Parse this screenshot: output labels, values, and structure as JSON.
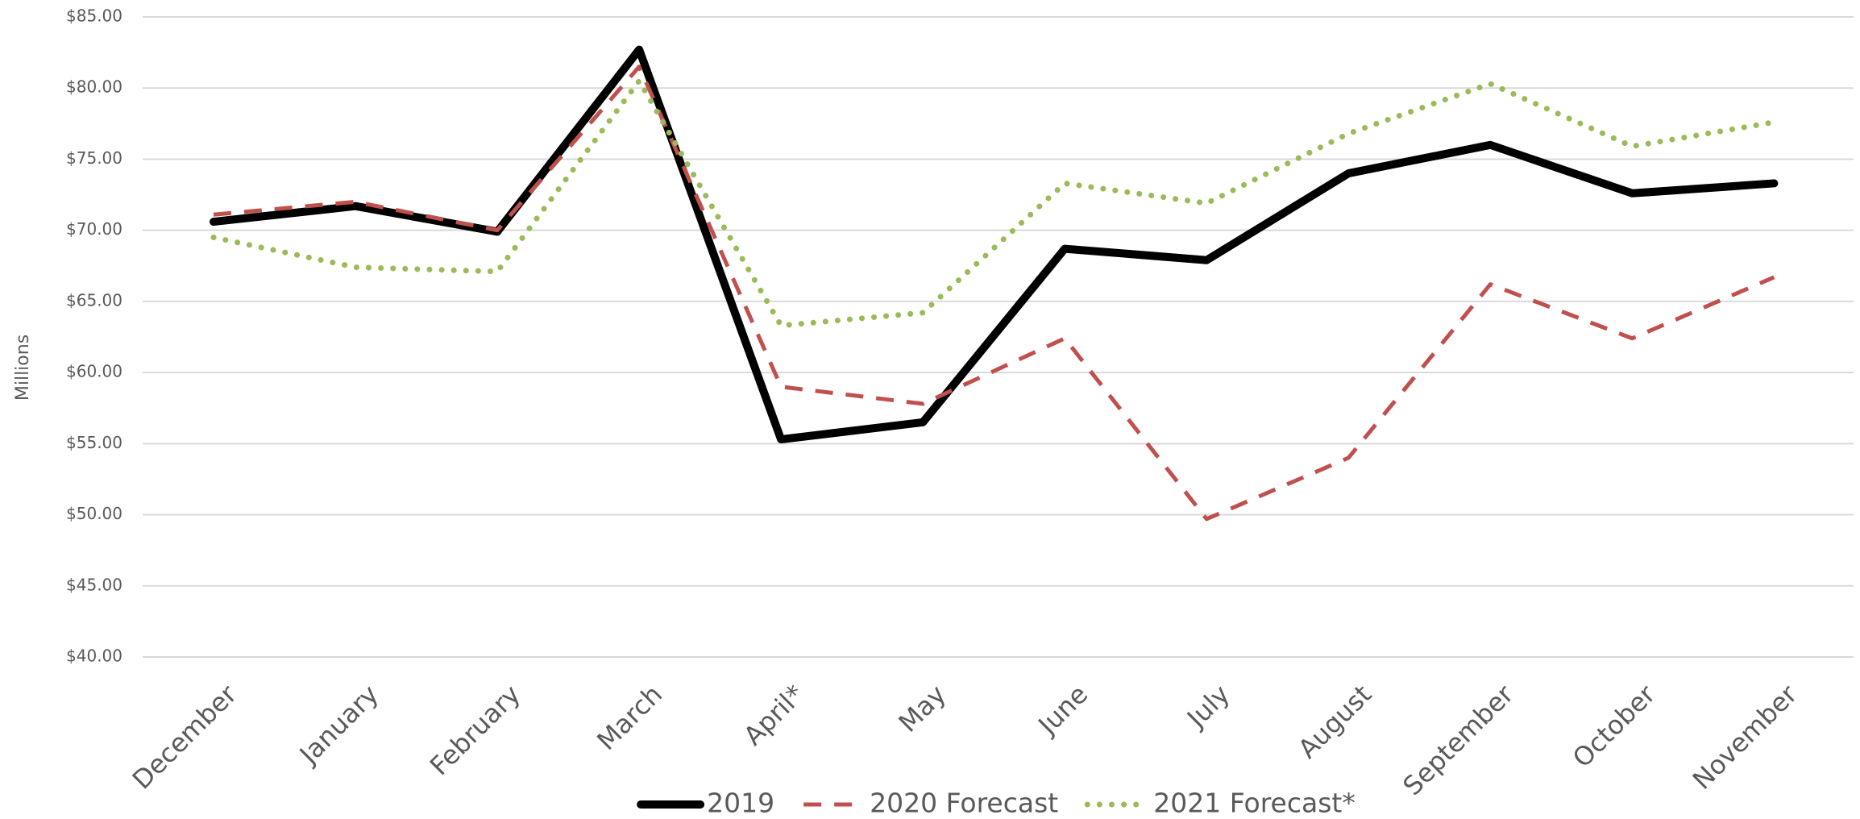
{
  "chart_data": {
    "type": "line",
    "y_axis_label": "Millions",
    "categories": [
      "December",
      "January",
      "February",
      "March",
      "April*",
      "May",
      "June",
      "July",
      "August",
      "September",
      "October",
      "November"
    ],
    "series": [
      {
        "name": "2019",
        "color": "#000000",
        "line_style": "solid",
        "values": [
          70.6,
          71.7,
          69.9,
          82.7,
          55.3,
          56.5,
          68.7,
          67.9,
          74.0,
          76.0,
          72.6,
          73.3
        ]
      },
      {
        "name": "2020 Forecast",
        "color": "#c0504d",
        "line_style": "dashed",
        "values": [
          71.1,
          72.0,
          70.0,
          81.5,
          59.0,
          57.8,
          62.4,
          49.7,
          54.0,
          66.2,
          62.4,
          66.7
        ]
      },
      {
        "name": "2021 Forecast*",
        "color": "#9bbb59",
        "line_style": "dotted",
        "values": [
          69.5,
          67.4,
          67.1,
          80.5,
          63.3,
          64.2,
          73.3,
          71.9,
          76.8,
          80.3,
          75.9,
          77.6
        ]
      }
    ],
    "ylim": [
      40,
      85
    ],
    "yticks": [
      {
        "value": 40,
        "label": "$40.00"
      },
      {
        "value": 45,
        "label": "$45.00"
      },
      {
        "value": 50,
        "label": "$50.00"
      },
      {
        "value": 55,
        "label": "$55.00"
      },
      {
        "value": 60,
        "label": "$60.00"
      },
      {
        "value": 65,
        "label": "$65.00"
      },
      {
        "value": 70,
        "label": "$70.00"
      },
      {
        "value": 75,
        "label": "$75.00"
      },
      {
        "value": 80,
        "label": "$80.00"
      },
      {
        "value": 85,
        "label": "$85.00"
      }
    ],
    "grid": true,
    "legend_position": "bottom"
  }
}
